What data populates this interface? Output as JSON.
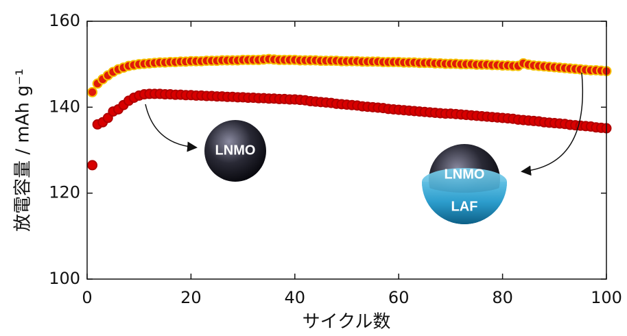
{
  "chart_data": {
    "type": "scatter",
    "xlabel": "サイクル数",
    "ylabel": "放電容量 / mAh g⁻¹",
    "x": [
      1,
      2,
      3,
      4,
      5,
      6,
      7,
      8,
      9,
      10,
      11,
      12,
      13,
      14,
      15,
      16,
      17,
      18,
      19,
      20,
      21,
      22,
      23,
      24,
      25,
      26,
      27,
      28,
      29,
      30,
      31,
      32,
      33,
      34,
      35,
      36,
      37,
      38,
      39,
      40,
      41,
      42,
      43,
      44,
      45,
      46,
      47,
      48,
      49,
      50,
      51,
      52,
      53,
      54,
      55,
      56,
      57,
      58,
      59,
      60,
      61,
      62,
      63,
      64,
      65,
      66,
      67,
      68,
      69,
      70,
      71,
      72,
      73,
      74,
      75,
      76,
      77,
      78,
      79,
      80,
      81,
      82,
      83,
      84,
      85,
      86,
      87,
      88,
      89,
      90,
      91,
      92,
      93,
      94,
      95,
      96,
      97,
      98,
      99,
      100
    ],
    "series": [
      {
        "color": "#d80000",
        "edgecolor": "#b00000",
        "values": [
          126.5,
          136,
          136.5,
          137.5,
          139,
          139.5,
          140.5,
          141.5,
          142.2,
          142.7,
          143,
          143.1,
          143.1,
          143.1,
          143,
          143,
          142.9,
          142.9,
          142.8,
          142.8,
          142.7,
          142.7,
          142.6,
          142.6,
          142.5,
          142.5,
          142.4,
          142.4,
          142.3,
          142.3,
          142.2,
          142.2,
          142.1,
          142.1,
          142.0,
          142.0,
          141.9,
          141.9,
          141.8,
          141.8,
          141.7,
          141.6,
          141.4,
          141.3,
          141.2,
          141.1,
          141.0,
          140.8,
          140.7,
          140.6,
          140.5,
          140.4,
          140.2,
          140.1,
          140.0,
          139.9,
          139.8,
          139.6,
          139.5,
          139.4,
          139.3,
          139.2,
          139.1,
          139.0,
          138.9,
          138.8,
          138.7,
          138.6,
          138.5,
          138.5,
          138.4,
          138.3,
          138.2,
          138.1,
          138.0,
          137.9,
          137.8,
          137.7,
          137.6,
          137.5,
          137.4,
          137.3,
          137.1,
          137.0,
          136.9,
          136.8,
          136.7,
          136.5,
          136.4,
          136.3,
          136.2,
          136.1,
          135.9,
          135.8,
          135.7,
          135.6,
          135.5,
          135.3,
          135.2,
          135.1
        ]
      },
      {
        "color": "#e01a0a",
        "edgecolor": "#f5c000",
        "values": [
          143.5,
          145.5,
          146.5,
          147.4,
          148.2,
          148.8,
          149.2,
          149.6,
          149.8,
          150.0,
          150.1,
          150.2,
          150.3,
          150.4,
          150.4,
          150.5,
          150.5,
          150.6,
          150.6,
          150.7,
          150.7,
          150.7,
          150.8,
          150.8,
          150.8,
          150.9,
          150.9,
          150.9,
          150.9,
          151.0,
          151.0,
          151.0,
          151.0,
          151.1,
          151.2,
          151.1,
          151.0,
          151.0,
          151.0,
          151.0,
          150.9,
          150.9,
          150.9,
          150.9,
          150.8,
          150.8,
          150.8,
          150.8,
          150.7,
          150.7,
          150.7,
          150.7,
          150.6,
          150.6,
          150.6,
          150.6,
          150.5,
          150.5,
          150.5,
          150.5,
          150.4,
          150.4,
          150.4,
          150.3,
          150.3,
          150.3,
          150.2,
          150.2,
          150.1,
          150.1,
          150.1,
          150.0,
          150.0,
          150.0,
          149.9,
          149.9,
          149.9,
          149.8,
          149.8,
          149.7,
          149.7,
          149.6,
          149.6,
          150.2,
          149.9,
          149.7,
          149.6,
          149.5,
          149.4,
          149.3,
          149.2,
          149.1,
          149.0,
          148.9,
          148.8,
          148.7,
          148.6,
          148.6,
          148.5,
          148.4
        ]
      }
    ],
    "xlim": [
      0,
      100
    ],
    "xticks": [
      0,
      20,
      40,
      60,
      80,
      100
    ],
    "ylim": [
      100,
      160
    ],
    "yticks": [
      100,
      120,
      140,
      160
    ],
    "annotations": [
      "LNMO",
      "LNMO",
      "LAF"
    ]
  }
}
